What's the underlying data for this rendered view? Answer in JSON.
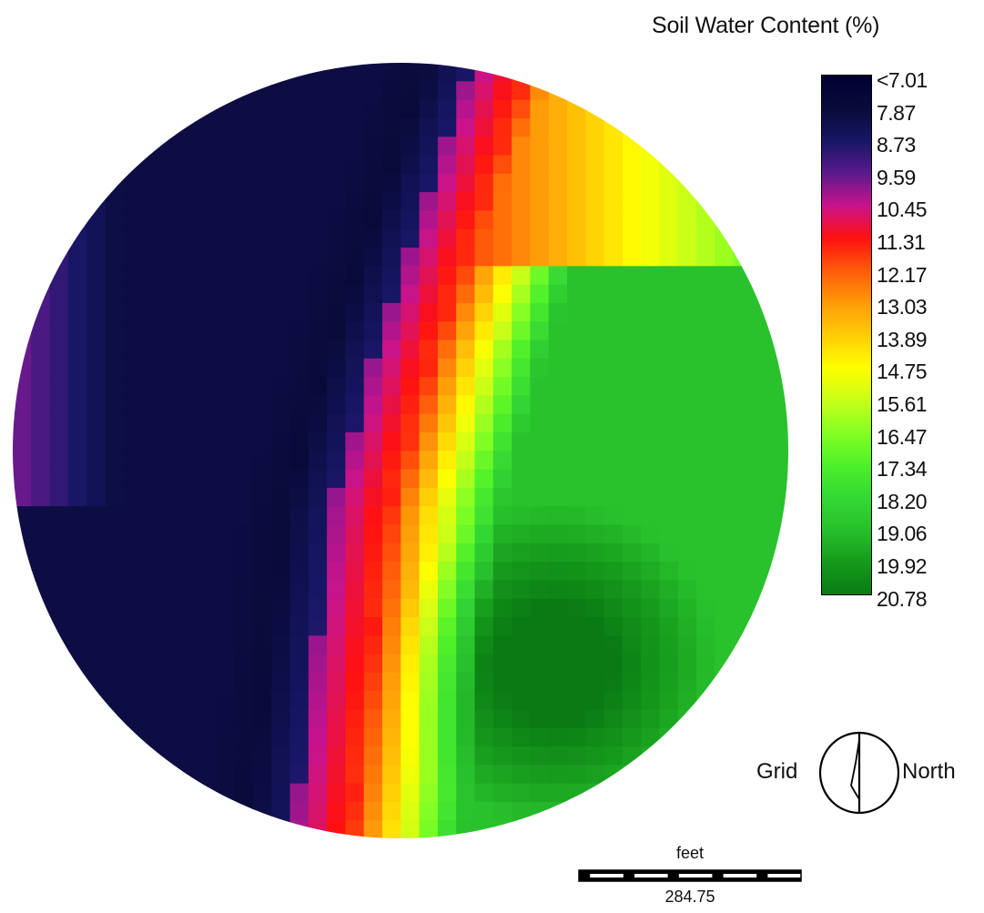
{
  "legend": {
    "title": "Soil Water Content (%)",
    "labels": [
      "<7.01",
      "7.87",
      "8.73",
      "9.59",
      "10.45",
      "11.31",
      "12.17",
      "13.03",
      "13.89",
      "14.75",
      "15.61",
      "16.47",
      "17.34",
      "18.20",
      "19.06",
      "19.92",
      "20.78"
    ],
    "colors": [
      "#000033",
      "#0a0a3a",
      "#161664",
      "#5a1a8c",
      "#c8138c",
      "#ff1010",
      "#ff5a0a",
      "#ff9a08",
      "#ffcc06",
      "#ffff00",
      "#c8ff18",
      "#86ff24",
      "#4ef02a",
      "#34d834",
      "#28c02c",
      "#169a1c",
      "#0a7a14"
    ]
  },
  "north_arrow": {
    "left_text": "Grid",
    "right_text": "North"
  },
  "scale_bar": {
    "unit": "feet",
    "value": "284.75"
  },
  "map": {
    "shape": "circular pivot field",
    "grid_cells": 42
  }
}
